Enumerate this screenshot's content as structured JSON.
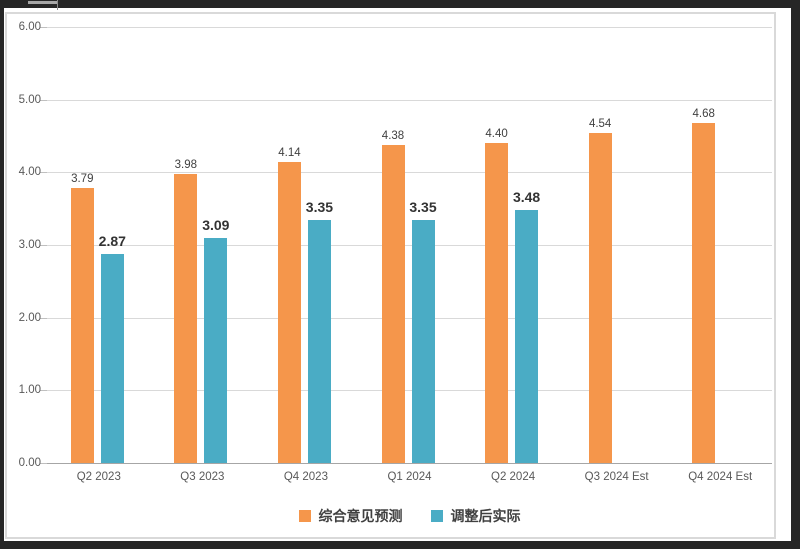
{
  "palette": {
    "frame": "#262626",
    "frame_tab": "#a6a6a6",
    "panel_border": "#d9d9d9",
    "gridline": "#d9d9d9",
    "axis_line": "#a6a6a6",
    "tick": "#bfbfbf",
    "axis_text": "#595959",
    "value_label_text": "#404040",
    "bold_label_text": "#333333",
    "legend_text": "#404040"
  },
  "chart_data": {
    "type": "bar",
    "title": "",
    "xlabel": "",
    "ylabel": "",
    "categories": [
      "Q2 2023",
      "Q3 2023",
      "Q4 2023",
      "Q1 2024",
      "Q2 2024",
      "Q3 2024 Est",
      "Q4 2024 Est"
    ],
    "series": [
      {
        "name": "综合意见预测",
        "color": "#F5964B",
        "values": [
          3.79,
          3.98,
          4.14,
          4.38,
          4.4,
          4.54,
          4.68
        ]
      },
      {
        "name": "调整后实际",
        "color": "#4AACC5",
        "values": [
          2.87,
          3.09,
          3.35,
          3.35,
          3.48,
          null,
          null
        ]
      }
    ],
    "ylim": [
      0,
      6
    ],
    "y_ticks": [
      "0.00",
      "1.00",
      "2.00",
      "3.00",
      "4.00",
      "5.00",
      "6.00"
    ],
    "grid": true,
    "legend_position": "bottom",
    "value_labels": true,
    "value_label_format": "0.00"
  }
}
